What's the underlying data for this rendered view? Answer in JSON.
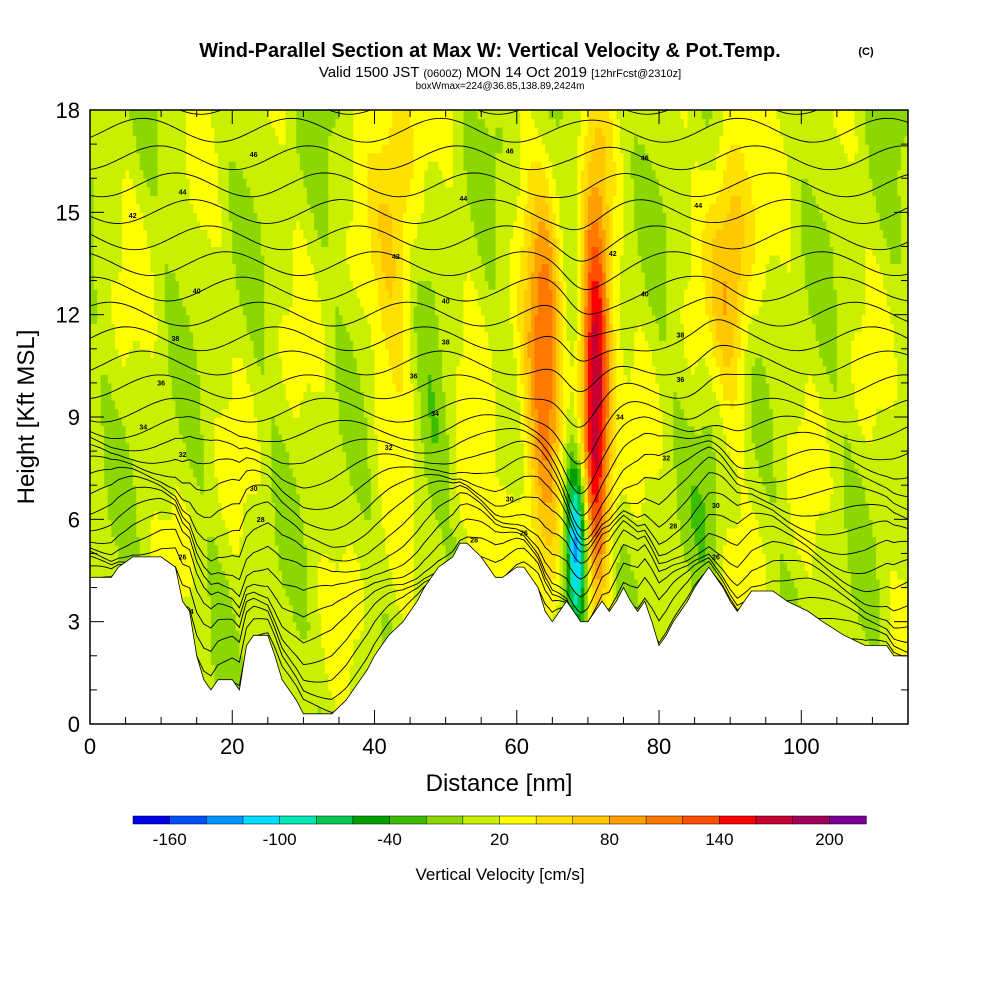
{
  "header": {
    "title": "Wind-Parallel Section at Max W: Vertical Velocity & Pot.Temp.",
    "copyright": "(C)",
    "subtitle_main": "Valid 1500 JST",
    "subtitle_utc": "(0600Z)",
    "subtitle_date": "MON 14 Oct 2019",
    "subtitle_fcst": "[12hrFcst@2310z]",
    "subtitle2": "boxWmax=224@36.85,138.89,2424m"
  },
  "chart_data": {
    "type": "heatmap",
    "title": "Wind-Parallel Section at Max W: Vertical Velocity & Pot.Temp.",
    "xlabel": "Distance [nm]",
    "ylabel": "Height [Kft MSL]",
    "xlim": [
      0,
      115
    ],
    "ylim": [
      0,
      18
    ],
    "x_ticks": [
      "0",
      "20",
      "40",
      "60",
      "80",
      "100"
    ],
    "y_ticks": [
      "0",
      "3",
      "6",
      "9",
      "12",
      "15",
      "18"
    ],
    "colorbar": {
      "label": "Vertical Velocity [cm/s]",
      "tick_labels": [
        "-160",
        "-100",
        "-40",
        "20",
        "80",
        "140",
        "200"
      ],
      "bins": [
        -180,
        -160,
        -140,
        -120,
        -100,
        -80,
        -60,
        -40,
        -20,
        0,
        20,
        40,
        60,
        80,
        100,
        120,
        140,
        160,
        180,
        200,
        220
      ],
      "colors": [
        "#0000e6",
        "#0050ff",
        "#0096ff",
        "#00dcff",
        "#00e6b4",
        "#00c850",
        "#00a000",
        "#3cbe00",
        "#8cd700",
        "#c8f000",
        "#ffff00",
        "#ffe100",
        "#ffc800",
        "#ffa000",
        "#ff7800",
        "#ff5000",
        "#ff0000",
        "#c80032",
        "#a0005a",
        "#780096"
      ]
    },
    "terrain_kft": [
      [
        0,
        4.3
      ],
      [
        3,
        4.3
      ],
      [
        4,
        4.6
      ],
      [
        6,
        4.9
      ],
      [
        10,
        4.9
      ],
      [
        12,
        4.6
      ],
      [
        13,
        3.6
      ],
      [
        14,
        3.3
      ],
      [
        15,
        2.0
      ],
      [
        16,
        1.3
      ],
      [
        17,
        1.0
      ],
      [
        18,
        1.3
      ],
      [
        20,
        1.3
      ],
      [
        21,
        1.0
      ],
      [
        22,
        2.3
      ],
      [
        23,
        2.6
      ],
      [
        25,
        2.6
      ],
      [
        26,
        2.0
      ],
      [
        27,
        1.3
      ],
      [
        29,
        0.7
      ],
      [
        30,
        0.3
      ],
      [
        34,
        0.3
      ],
      [
        36,
        0.7
      ],
      [
        37,
        1.0
      ],
      [
        38,
        1.3
      ],
      [
        39,
        1.6
      ],
      [
        40,
        2.0
      ],
      [
        41,
        2.3
      ],
      [
        42,
        2.6
      ],
      [
        44,
        3.0
      ],
      [
        45,
        3.3
      ],
      [
        46,
        3.6
      ],
      [
        47,
        4.0
      ],
      [
        48,
        4.3
      ],
      [
        49,
        4.6
      ],
      [
        51,
        4.9
      ],
      [
        52,
        5.3
      ],
      [
        53,
        5.3
      ],
      [
        55,
        4.9
      ],
      [
        56,
        4.6
      ],
      [
        57,
        4.3
      ],
      [
        58,
        4.3
      ],
      [
        60,
        4.6
      ],
      [
        61,
        4.6
      ],
      [
        62,
        4.3
      ],
      [
        63,
        4.0
      ],
      [
        64,
        3.3
      ],
      [
        65,
        3.0
      ],
      [
        66,
        3.3
      ],
      [
        67,
        3.6
      ],
      [
        68,
        3.3
      ],
      [
        69,
        3.0
      ],
      [
        70,
        3.0
      ],
      [
        71,
        3.3
      ],
      [
        72,
        3.6
      ],
      [
        73,
        3.3
      ],
      [
        74,
        3.6
      ],
      [
        75,
        4.0
      ],
      [
        76,
        3.6
      ],
      [
        77,
        3.3
      ],
      [
        78,
        3.6
      ],
      [
        79,
        3.0
      ],
      [
        80,
        2.3
      ],
      [
        81,
        2.6
      ],
      [
        82,
        3.0
      ],
      [
        83,
        3.3
      ],
      [
        84,
        3.6
      ],
      [
        85,
        4.0
      ],
      [
        86,
        4.3
      ],
      [
        87,
        4.6
      ],
      [
        88,
        4.3
      ],
      [
        89,
        4.0
      ],
      [
        90,
        3.6
      ],
      [
        91,
        3.3
      ],
      [
        92,
        3.6
      ],
      [
        93,
        3.9
      ],
      [
        96,
        3.9
      ],
      [
        98,
        3.6
      ],
      [
        101,
        3.3
      ],
      [
        103,
        3.0
      ],
      [
        106,
        2.6
      ],
      [
        109,
        2.3
      ],
      [
        112,
        2.3
      ],
      [
        113,
        2.0
      ],
      [
        115,
        2.0
      ]
    ],
    "updraft_cores": [
      {
        "x": 71,
        "y_range": [
          6.5,
          13
        ],
        "w_max": 200
      },
      {
        "x": 64,
        "y_range": [
          7,
          13
        ],
        "w_max": 120
      },
      {
        "x": 90,
        "y_range": [
          11,
          16
        ],
        "w_max": 80
      },
      {
        "x": 43,
        "y_range": [
          11,
          18
        ],
        "w_max": 60
      }
    ],
    "downdraft_cores": [
      {
        "x": 68.5,
        "y_range": [
          3.5,
          7
        ],
        "w_min": -160
      }
    ],
    "theta_contour_labels": [
      {
        "x": 23,
        "y": 16.7,
        "label": "46"
      },
      {
        "x": 13,
        "y": 15.6,
        "label": "44"
      },
      {
        "x": 6,
        "y": 14.9,
        "label": "42"
      },
      {
        "x": 15,
        "y": 12.7,
        "label": "40"
      },
      {
        "x": 12,
        "y": 11.3,
        "label": "38"
      },
      {
        "x": 10,
        "y": 10.0,
        "label": "36"
      },
      {
        "x": 7.5,
        "y": 8.7,
        "label": "34"
      },
      {
        "x": 13,
        "y": 7.9,
        "label": "32"
      },
      {
        "x": 23,
        "y": 6.9,
        "label": "30"
      },
      {
        "x": 24,
        "y": 6.0,
        "label": "28"
      },
      {
        "x": 13,
        "y": 4.9,
        "label": "26"
      },
      {
        "x": 14,
        "y": 3.3,
        "label": "24"
      },
      {
        "x": 43,
        "y": 13.7,
        "label": "42"
      },
      {
        "x": 50,
        "y": 12.4,
        "label": "40"
      },
      {
        "x": 50,
        "y": 11.2,
        "label": "38"
      },
      {
        "x": 45.5,
        "y": 10.2,
        "label": "36"
      },
      {
        "x": 48.5,
        "y": 9.1,
        "label": "34"
      },
      {
        "x": 42,
        "y": 8.1,
        "label": "32"
      },
      {
        "x": 59,
        "y": 6.6,
        "label": "30"
      },
      {
        "x": 54,
        "y": 5.4,
        "label": "28"
      },
      {
        "x": 61,
        "y": 5.6,
        "label": "26"
      },
      {
        "x": 52.5,
        "y": 15.4,
        "label": "44"
      },
      {
        "x": 59,
        "y": 16.8,
        "label": "46"
      },
      {
        "x": 78,
        "y": 16.6,
        "label": "46"
      },
      {
        "x": 85.5,
        "y": 15.2,
        "label": "44"
      },
      {
        "x": 73.5,
        "y": 13.8,
        "label": "42"
      },
      {
        "x": 78,
        "y": 12.6,
        "label": "40"
      },
      {
        "x": 83,
        "y": 11.4,
        "label": "38"
      },
      {
        "x": 83,
        "y": 10.1,
        "label": "36"
      },
      {
        "x": 74.5,
        "y": 9.0,
        "label": "34"
      },
      {
        "x": 81,
        "y": 7.8,
        "label": "32"
      },
      {
        "x": 88,
        "y": 6.4,
        "label": "30"
      },
      {
        "x": 82,
        "y": 5.8,
        "label": "28"
      },
      {
        "x": 88,
        "y": 4.9,
        "label": "26"
      }
    ]
  }
}
